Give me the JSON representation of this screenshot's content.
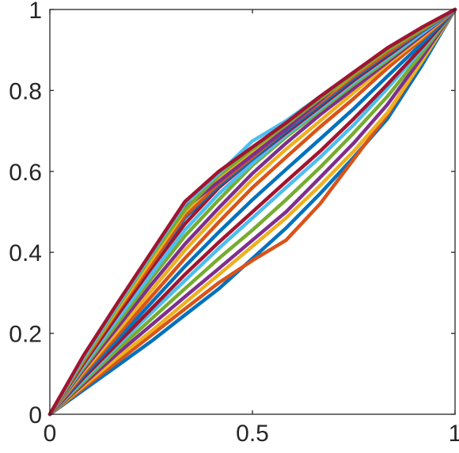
{
  "chart_data": {
    "type": "line",
    "title": "",
    "xlabel": "",
    "ylabel": "",
    "xlim": [
      0,
      1
    ],
    "ylim": [
      0,
      1
    ],
    "grid": false,
    "legend": "none",
    "xticks": [
      0,
      0.5,
      1
    ],
    "xtick_labels": [
      "0",
      "0.5",
      "1"
    ],
    "yticks": [
      0,
      0.2,
      0.4,
      0.6,
      0.8,
      1
    ],
    "ytick_labels": [
      "0",
      "0.2",
      "0.4",
      "0.6",
      "0.8",
      "1"
    ],
    "colors": [
      "#0072BD",
      "#D95319",
      "#EDB120",
      "#7E2F8E",
      "#77AC30",
      "#4DBEEE",
      "#A2142F"
    ],
    "x": [
      0,
      0.083,
      0.167,
      0.25,
      0.333,
      0.417,
      0.5,
      0.583,
      0.667,
      0.75,
      0.833,
      0.917,
      1
    ],
    "series": [
      {
        "values": [
          0,
          0.06,
          0.12,
          0.18,
          0.245,
          0.31,
          0.385,
          0.46,
          0.545,
          0.635,
          0.73,
          0.86,
          1
        ]
      },
      {
        "values": [
          0,
          0.065,
          0.13,
          0.195,
          0.26,
          0.325,
          0.38,
          0.43,
          0.52,
          0.63,
          0.74,
          0.87,
          1
        ]
      },
      {
        "values": [
          0,
          0.07,
          0.14,
          0.205,
          0.275,
          0.345,
          0.415,
          0.485,
          0.565,
          0.65,
          0.745,
          0.87,
          1
        ]
      },
      {
        "values": [
          0,
          0.075,
          0.15,
          0.22,
          0.29,
          0.36,
          0.43,
          0.5,
          0.585,
          0.67,
          0.765,
          0.88,
          1
        ]
      },
      {
        "values": [
          0,
          0.08,
          0.16,
          0.235,
          0.31,
          0.385,
          0.455,
          0.53,
          0.61,
          0.695,
          0.785,
          0.89,
          1
        ]
      },
      {
        "values": [
          0,
          0.085,
          0.17,
          0.25,
          0.33,
          0.41,
          0.485,
          0.56,
          0.635,
          0.715,
          0.805,
          0.9,
          1
        ]
      },
      {
        "values": [
          0,
          0.09,
          0.175,
          0.26,
          0.345,
          0.425,
          0.5,
          0.575,
          0.65,
          0.73,
          0.815,
          0.905,
          1
        ]
      },
      {
        "values": [
          0,
          0.095,
          0.185,
          0.275,
          0.365,
          0.45,
          0.53,
          0.605,
          0.68,
          0.755,
          0.835,
          0.915,
          1
        ]
      },
      {
        "values": [
          0,
          0.1,
          0.195,
          0.29,
          0.385,
          0.475,
          0.56,
          0.635,
          0.71,
          0.78,
          0.855,
          0.925,
          1
        ]
      },
      {
        "values": [
          0,
          0.105,
          0.205,
          0.305,
          0.405,
          0.495,
          0.58,
          0.655,
          0.725,
          0.795,
          0.865,
          0.93,
          1
        ]
      },
      {
        "values": [
          0,
          0.11,
          0.215,
          0.32,
          0.42,
          0.51,
          0.595,
          0.67,
          0.74,
          0.805,
          0.87,
          0.935,
          1
        ]
      },
      {
        "values": [
          0,
          0.115,
          0.225,
          0.335,
          0.44,
          0.53,
          0.615,
          0.685,
          0.75,
          0.815,
          0.875,
          0.94,
          1
        ]
      },
      {
        "values": [
          0,
          0.12,
          0.235,
          0.345,
          0.455,
          0.545,
          0.62,
          0.69,
          0.755,
          0.82,
          0.88,
          0.94,
          1
        ]
      },
      {
        "values": [
          0,
          0.125,
          0.245,
          0.36,
          0.47,
          0.56,
          0.63,
          0.695,
          0.76,
          0.825,
          0.885,
          0.945,
          1
        ]
      },
      {
        "values": [
          0,
          0.13,
          0.255,
          0.37,
          0.485,
          0.565,
          0.63,
          0.7,
          0.765,
          0.83,
          0.89,
          0.945,
          1
        ]
      },
      {
        "values": [
          0,
          0.13,
          0.255,
          0.37,
          0.49,
          0.57,
          0.635,
          0.705,
          0.77,
          0.835,
          0.893,
          0.948,
          1
        ]
      },
      {
        "values": [
          0,
          0.135,
          0.26,
          0.38,
          0.5,
          0.58,
          0.65,
          0.71,
          0.775,
          0.84,
          0.9,
          0.95,
          1
        ]
      },
      {
        "values": [
          0,
          0.14,
          0.27,
          0.39,
          0.51,
          0.575,
          0.64,
          0.705,
          0.775,
          0.845,
          0.9,
          0.95,
          1
        ]
      },
      {
        "values": [
          0,
          0.135,
          0.265,
          0.39,
          0.505,
          0.59,
          0.655,
          0.715,
          0.78,
          0.84,
          0.9,
          0.95,
          1
        ]
      },
      {
        "values": [
          0,
          0.14,
          0.27,
          0.395,
          0.52,
          0.595,
          0.675,
          0.725,
          0.785,
          0.845,
          0.905,
          0.955,
          1
        ]
      },
      {
        "values": [
          0,
          0.145,
          0.275,
          0.4,
          0.525,
          0.6,
          0.66,
          0.72,
          0.785,
          0.845,
          0.905,
          0.955,
          1
        ]
      }
    ]
  }
}
